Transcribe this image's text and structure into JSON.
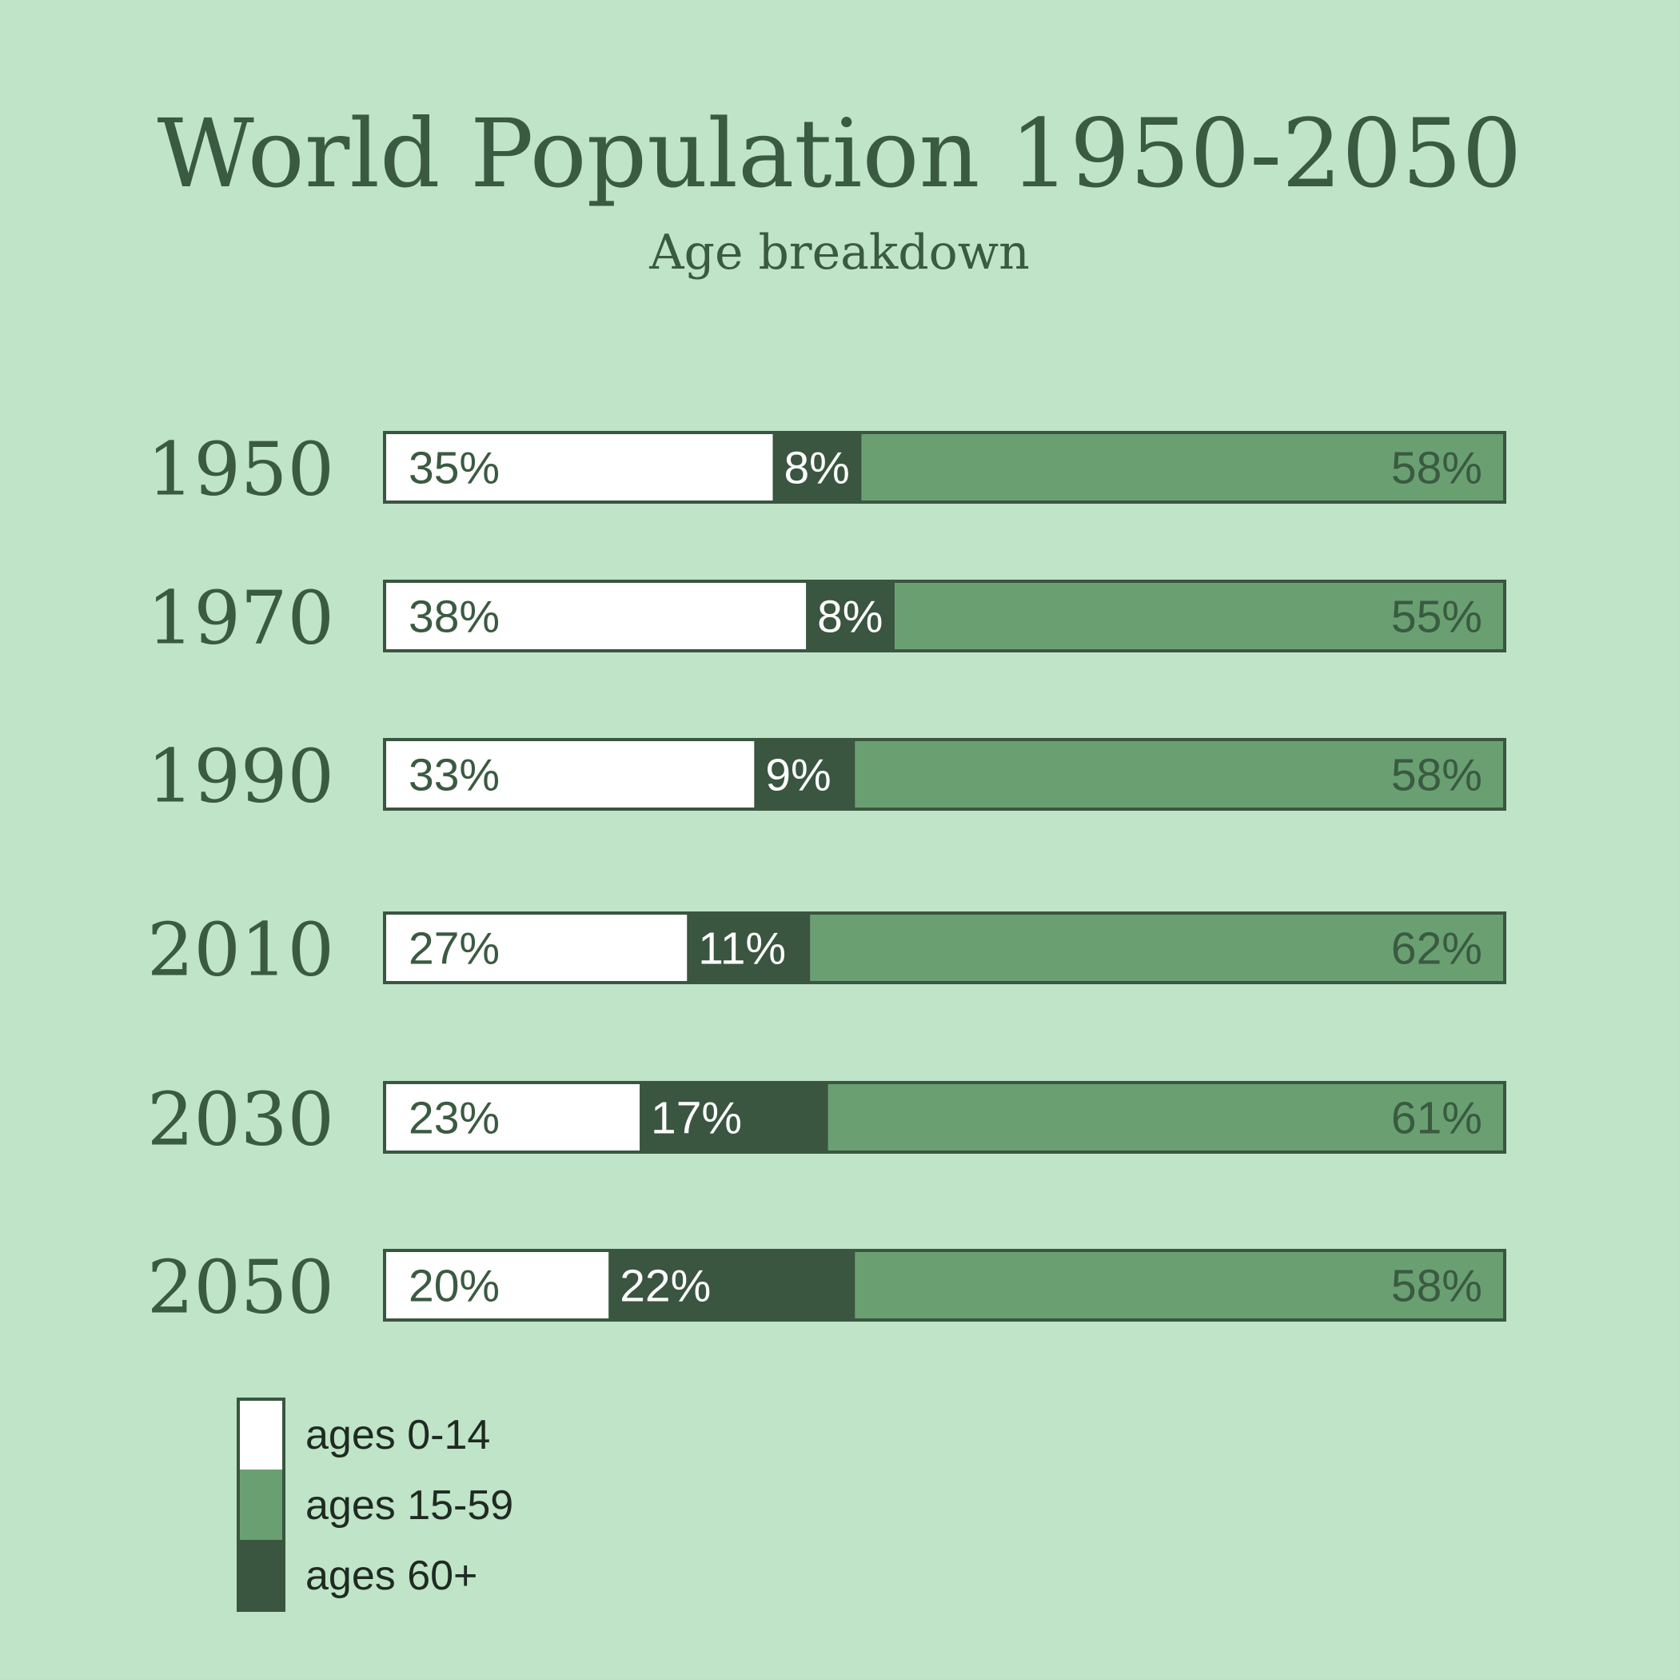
{
  "chart_data": {
    "type": "bar",
    "title": "World Population 1950-2050",
    "subtitle": "Age breakdown",
    "categories": [
      "1950",
      "1970",
      "1990",
      "2010",
      "2030",
      "2050"
    ],
    "series": [
      {
        "name": "ages 0-14",
        "values": [
          35,
          38,
          33,
          27,
          23,
          20
        ],
        "color": "#ffffff",
        "label_color": "#3a5a41"
      },
      {
        "name": "ages 60+",
        "values": [
          8,
          8,
          9,
          11,
          17,
          22
        ],
        "color": "#3a5540",
        "label_color": "#ffffff"
      },
      {
        "name": "ages 15-59",
        "values": [
          58,
          55,
          58,
          62,
          61,
          58
        ],
        "color": "#6a9f72",
        "label_color": "#3a5a41"
      }
    ],
    "value_suffix": "%",
    "legend": {
      "placement": "bottom-left",
      "items": [
        "ages 0-14",
        "ages 15-59",
        "ages 60+"
      ],
      "colors": [
        "#ffffff",
        "#6a9f72",
        "#3a5540"
      ]
    },
    "colors": {
      "background": "#bfe4c7",
      "border": "#3a5540",
      "title": "#3a5a41"
    }
  }
}
